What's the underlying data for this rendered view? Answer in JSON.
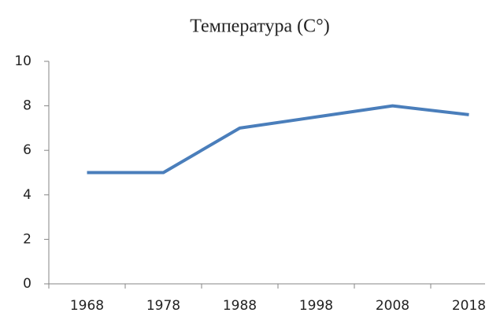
{
  "chart_data": {
    "type": "line",
    "title": "Температура (С°)",
    "categories": [
      "1968",
      "1978",
      "1988",
      "1998",
      "2008",
      "2018"
    ],
    "values": [
      5,
      5,
      7,
      7.5,
      8,
      7.6
    ],
    "color": "#4a7ebb",
    "ylim": [
      0,
      10
    ],
    "yticks": [
      0,
      2,
      4,
      6,
      8,
      10
    ],
    "grid": false
  }
}
